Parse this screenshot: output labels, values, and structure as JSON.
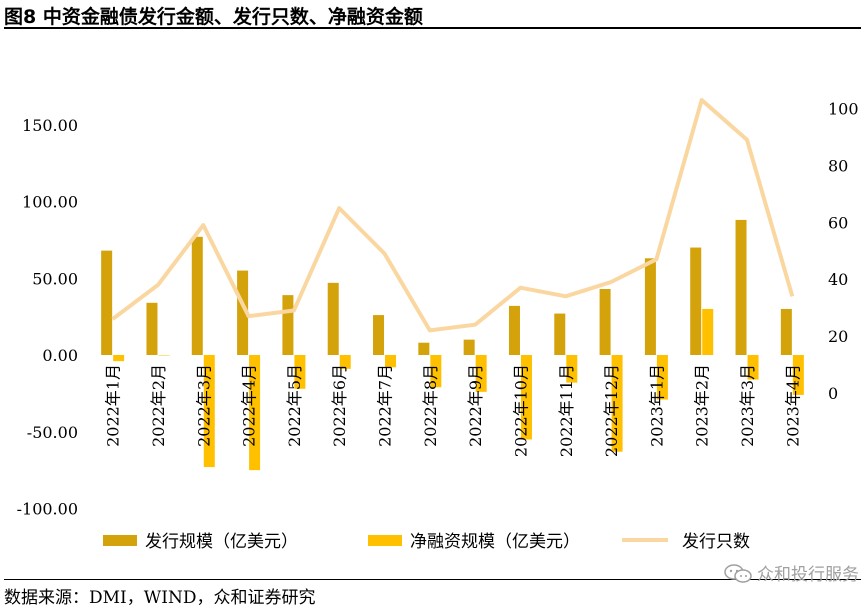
{
  "figure": {
    "title": "图8 中资金融债发行金额、发行只数、净融资金额",
    "source": "数据来源：DMI，WIND，众和证券研究",
    "watermark": "众和投行服务",
    "watermark_icon": "wechat-icon"
  },
  "colors": {
    "issuance": "#D4A20B",
    "net": "#FFC000",
    "count": "#FAD7A0"
  },
  "chart_data": {
    "type": "bar",
    "categories": [
      "2022年1月",
      "2022年2月",
      "2022年3月",
      "2022年4月",
      "2022年5月",
      "2022年6月",
      "2022年7月",
      "2022年8月",
      "2022年9月",
      "2022年10月",
      "2022年11月",
      "2022年12月",
      "2023年1月",
      "2023年2月",
      "2023年3月",
      "2023年4月"
    ],
    "series": [
      {
        "name": "发行规模（亿美元）",
        "type": "bar",
        "axis": "left",
        "values": [
          68,
          34,
          77,
          55,
          39,
          47,
          26,
          8,
          10,
          32,
          27,
          43,
          63,
          70,
          88,
          30
        ]
      },
      {
        "name": "净融资规模（亿美元）",
        "type": "bar",
        "axis": "left",
        "values": [
          -4,
          0,
          -73,
          -75,
          -22,
          -9,
          -8,
          -21,
          -24,
          -55,
          -18,
          -63,
          -29,
          30,
          -16,
          -26
        ]
      },
      {
        "name": "发行只数",
        "type": "line",
        "axis": "right",
        "values": [
          26,
          38,
          59,
          27,
          29,
          65,
          49,
          22,
          24,
          37,
          34,
          39,
          47,
          103,
          89,
          34
        ]
      }
    ],
    "y_left": {
      "ticks": [
        "150.00",
        "100.00",
        "50.00",
        "0.00",
        "-50.00",
        "-100.00"
      ],
      "range": [
        -100,
        150
      ]
    },
    "y_right": {
      "ticks": [
        "100",
        "80",
        "60",
        "40",
        "20",
        "0"
      ],
      "range": [
        0,
        100
      ]
    },
    "legend": "bottom",
    "grid": false
  }
}
